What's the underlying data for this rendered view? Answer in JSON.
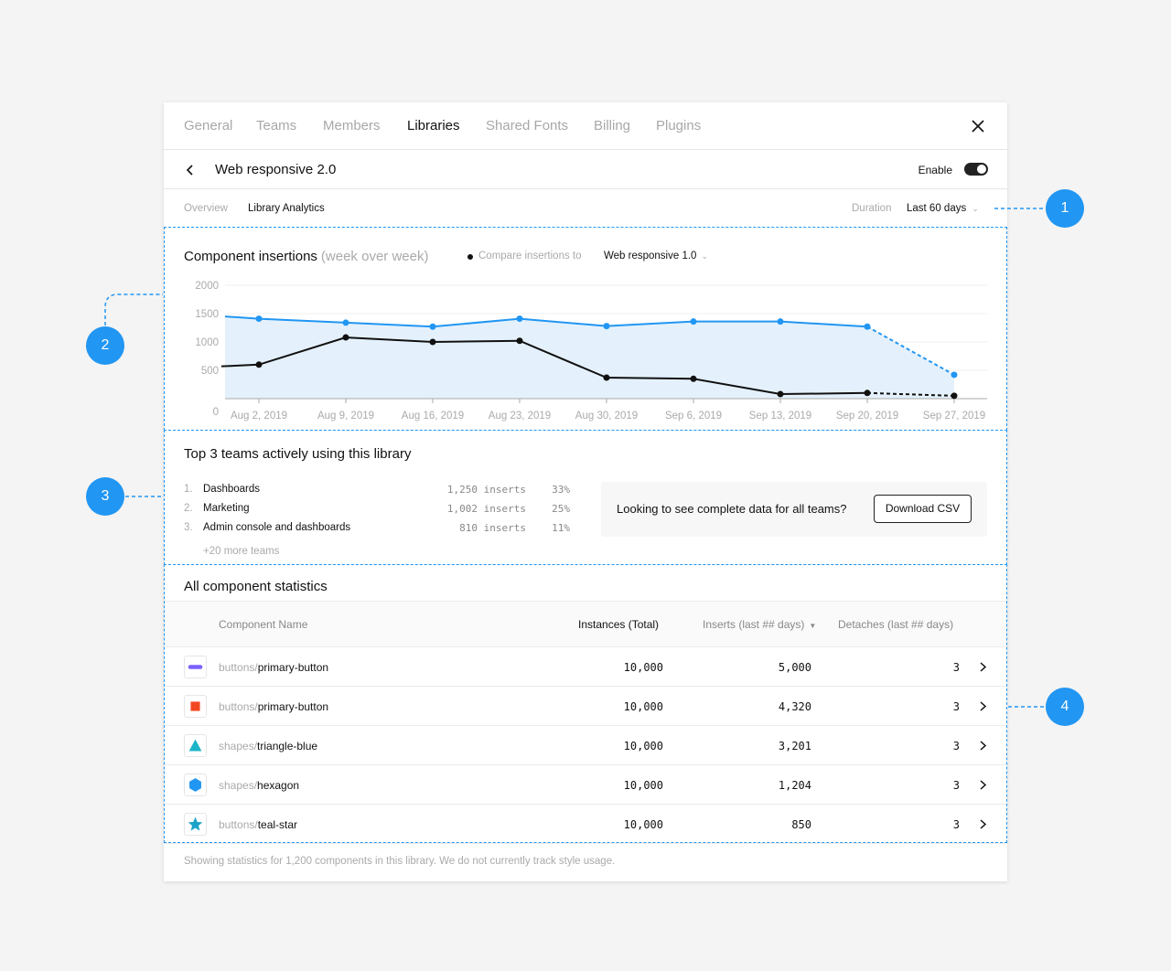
{
  "colors": {
    "accent": "#2196f3",
    "compare": "#111111",
    "area": "#e4f1fc"
  },
  "tabs": [
    {
      "label": "General"
    },
    {
      "label": "Teams"
    },
    {
      "label": "Members"
    },
    {
      "label": "Libraries"
    },
    {
      "label": "Shared Fonts"
    },
    {
      "label": "Billing"
    },
    {
      "label": "Plugins"
    }
  ],
  "active_tab": "Libraries",
  "header": {
    "title": "Web responsive 2.0",
    "enable_label": "Enable",
    "enabled": true
  },
  "subtabs": {
    "overview": "Overview",
    "analytics": "Library Analytics"
  },
  "duration": {
    "label": "Duration",
    "value": "Last 60 days"
  },
  "chart": {
    "title": "Component insertions",
    "title_muted": "(week over week)",
    "compare_label": "Compare insertions to",
    "compare_value": "Web responsive 1.0"
  },
  "chart_data": {
    "type": "line",
    "categories": [
      "Aug 2, 2019",
      "Aug 9, 2019",
      "Aug 16, 2019",
      "Aug 23, 2019",
      "Aug 30, 2019",
      "Sep 6, 2019",
      "Sep 13, 2019",
      "Sep 20, 2019",
      "Sep 27, 2019"
    ],
    "y_ticks": [
      "2000",
      "1500",
      "1000",
      "500",
      "0"
    ],
    "ylim": [
      0,
      2000
    ],
    "series": [
      {
        "name": "Web responsive 2.0",
        "color": "#2196f3",
        "start": 1450,
        "values": [
          1410,
          1340,
          1270,
          1410,
          1280,
          1360,
          1360,
          1270,
          420
        ],
        "projected_last": true,
        "area": true
      },
      {
        "name": "Web responsive 1.0",
        "color": "#111111",
        "start": 570,
        "values": [
          600,
          1080,
          1000,
          1020,
          370,
          350,
          80,
          100,
          50
        ],
        "projected_last": true,
        "area": false
      }
    ],
    "grid": true
  },
  "teams": {
    "title": "Top 3 teams actively using this library",
    "list": [
      {
        "num": "1.",
        "name": "Dashboards",
        "inserts": "1,250 inserts",
        "pct": "33%"
      },
      {
        "num": "2.",
        "name": "Marketing",
        "inserts": "1,002 inserts",
        "pct": "25%"
      },
      {
        "num": "3.",
        "name": "Admin console and dashboards",
        "inserts": "810 inserts",
        "pct": "11%"
      }
    ],
    "more": "+20 more teams",
    "cta_text": "Looking to see complete data for all teams?",
    "cta_button": "Download CSV"
  },
  "stats": {
    "title": "All component statistics",
    "columns": {
      "name": "Component Name",
      "instances": "Instances (Total)",
      "inserts": "Inserts (last ## days)",
      "detaches": "Detaches (last ## days)"
    },
    "rows": [
      {
        "prefix": "buttons/",
        "name": "primary-button",
        "icon": "purple-pill-icon",
        "instances": "10,000",
        "inserts": "5,000",
        "detaches": "3"
      },
      {
        "prefix": "buttons/",
        "name": "primary-button",
        "icon": "red-square-icon",
        "instances": "10,000",
        "inserts": "4,320",
        "detaches": "3"
      },
      {
        "prefix": "shapes/",
        "name": "triangle-blue",
        "icon": "teal-triangle-icon",
        "instances": "10,000",
        "inserts": "3,201",
        "detaches": "3"
      },
      {
        "prefix": "shapes/",
        "name": "hexagon",
        "icon": "blue-hexagon-icon",
        "instances": "10,000",
        "inserts": "1,204",
        "detaches": "3"
      },
      {
        "prefix": "buttons/",
        "name": "teal-star",
        "icon": "teal-star-icon",
        "instances": "10,000",
        "inserts": "850",
        "detaches": "3"
      }
    ]
  },
  "footer": "Showing statistics for 1,200 components in this library. We do not currently track style usage.",
  "annotations": [
    "1",
    "2",
    "3",
    "4"
  ]
}
